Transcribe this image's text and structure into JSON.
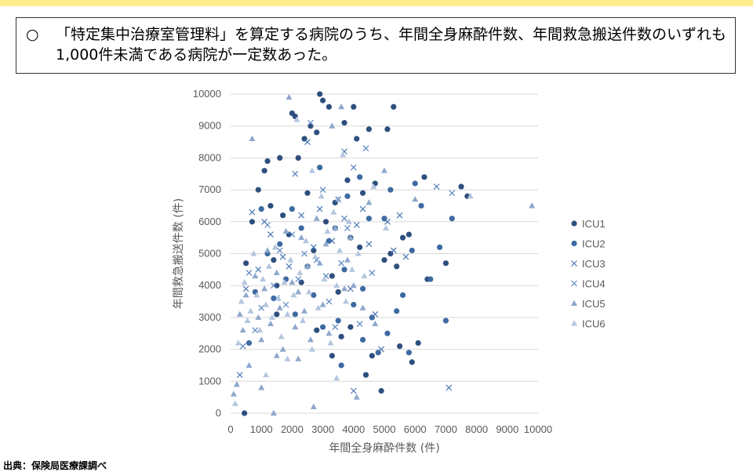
{
  "note": {
    "bullet": "○",
    "text": "「特定集中治療室管理料」を算定する病院のうち、年間全身麻酔件数、年間救急搬送件数のいずれも1,000件未満である病院が一定数あった。"
  },
  "source": "出典：保険局医療課調べ",
  "colors": {
    "ICU1": "#2e4f7e",
    "ICU2": "#3d6aa0",
    "ICU3": "#4a76b4",
    "ICU4": "#5b86c2",
    "ICU5": "#8ea7cc",
    "ICU6": "#b4c6e0",
    "grid": "#d9d9d9",
    "axis_text": "#595959"
  },
  "chart_data": {
    "type": "scatter",
    "xlabel": "年間全身麻酔件数 (件)",
    "ylabel": "年間救急搬送件数 (件)",
    "xlim": [
      0,
      10000
    ],
    "ylim": [
      0,
      10000
    ],
    "xticks": [
      "0",
      "1000",
      "2000",
      "3000",
      "4000",
      "5000",
      "6000",
      "7000",
      "8000",
      "9000",
      "10000"
    ],
    "yticks": [
      "0",
      "1000",
      "2000",
      "3000",
      "4000",
      "5000",
      "6000",
      "7000",
      "8000",
      "9000",
      "10000"
    ],
    "grid": "horizontal",
    "legend": "right",
    "series": [
      {
        "name": "ICU1",
        "marker": "circle",
        "points": [
          [
            450,
            0
          ],
          [
            500,
            4700
          ],
          [
            700,
            6000
          ],
          [
            900,
            7000
          ],
          [
            1100,
            7600
          ],
          [
            1200,
            7900
          ],
          [
            1300,
            6500
          ],
          [
            1400,
            4800
          ],
          [
            1500,
            3100
          ],
          [
            1600,
            8000
          ],
          [
            1700,
            6200
          ],
          [
            1900,
            5600
          ],
          [
            2000,
            9400
          ],
          [
            2100,
            9300
          ],
          [
            2200,
            8000
          ],
          [
            2300,
            4100
          ],
          [
            2400,
            8600
          ],
          [
            2500,
            6900
          ],
          [
            2600,
            9000
          ],
          [
            2700,
            5100
          ],
          [
            2800,
            8800
          ],
          [
            2900,
            10000
          ],
          [
            3000,
            9800
          ],
          [
            3100,
            6000
          ],
          [
            3200,
            9600
          ],
          [
            3300,
            4300
          ],
          [
            3400,
            6600
          ],
          [
            3500,
            3800
          ],
          [
            3600,
            2400
          ],
          [
            3700,
            9100
          ],
          [
            3800,
            7300
          ],
          [
            3900,
            5500
          ],
          [
            4000,
            9600
          ],
          [
            4100,
            8600
          ],
          [
            4200,
            5200
          ],
          [
            4300,
            6900
          ],
          [
            4400,
            1200
          ],
          [
            4500,
            8900
          ],
          [
            4600,
            1800
          ],
          [
            4700,
            7200
          ],
          [
            4900,
            700
          ],
          [
            5000,
            4800
          ],
          [
            5100,
            8900
          ],
          [
            5200,
            5000
          ],
          [
            5300,
            9600
          ],
          [
            5400,
            4600
          ],
          [
            5500,
            2100
          ],
          [
            5600,
            5500
          ],
          [
            5800,
            5600
          ],
          [
            5900,
            1600
          ],
          [
            6100,
            2200
          ],
          [
            6300,
            7400
          ],
          [
            6400,
            4200
          ],
          [
            7000,
            4700
          ],
          [
            7500,
            7100
          ],
          [
            7700,
            6800
          ],
          [
            3300,
            1800
          ],
          [
            2800,
            2600
          ],
          [
            1500,
            4000
          ],
          [
            3900,
            2700
          ]
        ]
      },
      {
        "name": "ICU2",
        "marker": "circle",
        "points": [
          [
            600,
            2200
          ],
          [
            800,
            3800
          ],
          [
            1000,
            6400
          ],
          [
            1200,
            5000
          ],
          [
            1400,
            3600
          ],
          [
            1600,
            5300
          ],
          [
            1800,
            4200
          ],
          [
            2000,
            6400
          ],
          [
            2100,
            3100
          ],
          [
            2300,
            5800
          ],
          [
            2500,
            4600
          ],
          [
            2700,
            3700
          ],
          [
            2900,
            7700
          ],
          [
            3000,
            2700
          ],
          [
            3200,
            5400
          ],
          [
            3400,
            5800
          ],
          [
            3500,
            2900
          ],
          [
            3700,
            4500
          ],
          [
            3800,
            6800
          ],
          [
            4000,
            3400
          ],
          [
            4200,
            7400
          ],
          [
            4300,
            2300
          ],
          [
            4500,
            6100
          ],
          [
            4600,
            3000
          ],
          [
            4800,
            1900
          ],
          [
            5000,
            6100
          ],
          [
            5100,
            2500
          ],
          [
            5200,
            7000
          ],
          [
            5400,
            3200
          ],
          [
            5600,
            3700
          ],
          [
            5800,
            1900
          ],
          [
            5900,
            5100
          ],
          [
            6000,
            7200
          ],
          [
            6200,
            6500
          ],
          [
            6500,
            4200
          ],
          [
            6800,
            5200
          ],
          [
            7000,
            2900
          ],
          [
            7200,
            6100
          ],
          [
            4300,
            3900
          ],
          [
            3600,
            1500
          ]
        ]
      },
      {
        "name": "ICU3",
        "marker": "x",
        "points": [
          [
            300,
            1200
          ],
          [
            500,
            3900
          ],
          [
            700,
            6300
          ],
          [
            900,
            4500
          ],
          [
            1100,
            6000
          ],
          [
            1300,
            5600
          ],
          [
            1500,
            3600
          ],
          [
            1700,
            4900
          ],
          [
            1900,
            4600
          ],
          [
            2100,
            7500
          ],
          [
            2300,
            6200
          ],
          [
            2500,
            8500
          ],
          [
            2700,
            5200
          ],
          [
            2900,
            6400
          ],
          [
            3100,
            4300
          ],
          [
            3300,
            5400
          ],
          [
            3500,
            6700
          ],
          [
            3700,
            8200
          ],
          [
            3900,
            3900
          ],
          [
            4100,
            5900
          ],
          [
            4300,
            6400
          ],
          [
            4500,
            5300
          ],
          [
            4700,
            3100
          ],
          [
            4900,
            2000
          ],
          [
            5100,
            6000
          ],
          [
            5300,
            5100
          ],
          [
            5500,
            6200
          ],
          [
            5700,
            4900
          ],
          [
            7100,
            800
          ],
          [
            4000,
            700
          ]
        ]
      },
      {
        "name": "ICU4",
        "marker": "x",
        "points": [
          [
            400,
            2100
          ],
          [
            600,
            4400
          ],
          [
            800,
            2600
          ],
          [
            1000,
            3300
          ],
          [
            1200,
            5900
          ],
          [
            1400,
            4000
          ],
          [
            1600,
            5100
          ],
          [
            1800,
            3400
          ],
          [
            2000,
            5600
          ],
          [
            2200,
            4200
          ],
          [
            2400,
            5000
          ],
          [
            2600,
            9100
          ],
          [
            2800,
            4800
          ],
          [
            3000,
            7000
          ],
          [
            3200,
            3500
          ],
          [
            3400,
            2700
          ],
          [
            3600,
            4700
          ],
          [
            3800,
            5800
          ],
          [
            4000,
            7700
          ],
          [
            4200,
            2800
          ],
          [
            4400,
            8300
          ],
          [
            4600,
            4400
          ],
          [
            6700,
            7100
          ],
          [
            7200,
            6900
          ],
          [
            3700,
            6100
          ]
        ]
      },
      {
        "name": "ICU5",
        "marker": "triangle",
        "points": [
          [
            100,
            600
          ],
          [
            200,
            900
          ],
          [
            300,
            3100
          ],
          [
            400,
            2600
          ],
          [
            500,
            3700
          ],
          [
            600,
            1500
          ],
          [
            700,
            8600
          ],
          [
            800,
            4300
          ],
          [
            900,
            3000
          ],
          [
            1000,
            2300
          ],
          [
            1100,
            3900
          ],
          [
            1200,
            5100
          ],
          [
            1300,
            2800
          ],
          [
            1400,
            0
          ],
          [
            1500,
            4400
          ],
          [
            1600,
            3300
          ],
          [
            1700,
            2000
          ],
          [
            1800,
            5700
          ],
          [
            1900,
            9900
          ],
          [
            2000,
            4100
          ],
          [
            2100,
            2700
          ],
          [
            2200,
            3800
          ],
          [
            2300,
            5500
          ],
          [
            2400,
            3200
          ],
          [
            2500,
            4600
          ],
          [
            2600,
            2300
          ],
          [
            2700,
            200
          ],
          [
            2800,
            6100
          ],
          [
            2900,
            4700
          ],
          [
            3000,
            3400
          ],
          [
            3100,
            5300
          ],
          [
            3200,
            2500
          ],
          [
            3300,
            9000
          ],
          [
            3400,
            5800
          ],
          [
            3500,
            6700
          ],
          [
            3600,
            9600
          ],
          [
            3700,
            3900
          ],
          [
            3800,
            4800
          ],
          [
            3900,
            5500
          ],
          [
            4000,
            4000
          ],
          [
            4100,
            500
          ],
          [
            4300,
            3300
          ],
          [
            4500,
            6600
          ],
          [
            4700,
            2800
          ],
          [
            5000,
            7600
          ],
          [
            6000,
            6700
          ],
          [
            9800,
            6500
          ],
          [
            2200,
            1700
          ],
          [
            1000,
            800
          ],
          [
            1500,
            1800
          ]
        ]
      },
      {
        "name": "ICU6",
        "marker": "triangle",
        "points": [
          [
            150,
            300
          ],
          [
            250,
            2200
          ],
          [
            350,
            3500
          ],
          [
            450,
            4100
          ],
          [
            550,
            2900
          ],
          [
            650,
            3200
          ],
          [
            750,
            5000
          ],
          [
            850,
            3700
          ],
          [
            950,
            2600
          ],
          [
            1050,
            4200
          ],
          [
            1150,
            3400
          ],
          [
            1250,
            4600
          ],
          [
            1350,
            3000
          ],
          [
            1450,
            5200
          ],
          [
            1550,
            3600
          ],
          [
            1650,
            2400
          ],
          [
            1750,
            4100
          ],
          [
            1850,
            3100
          ],
          [
            1950,
            4800
          ],
          [
            2050,
            3700
          ],
          [
            2150,
            9200
          ],
          [
            2250,
            4400
          ],
          [
            2350,
            2900
          ],
          [
            2450,
            5400
          ],
          [
            2550,
            3800
          ],
          [
            2650,
            7600
          ],
          [
            2750,
            4900
          ],
          [
            2850,
            3300
          ],
          [
            2950,
            6800
          ],
          [
            3050,
            4200
          ],
          [
            3150,
            5700
          ],
          [
            3250,
            2200
          ],
          [
            3350,
            6300
          ],
          [
            3450,
            4000
          ],
          [
            3550,
            5100
          ],
          [
            3650,
            8100
          ],
          [
            3750,
            3500
          ],
          [
            3850,
            6000
          ],
          [
            3950,
            4500
          ],
          [
            4150,
            5000
          ],
          [
            4350,
            4300
          ],
          [
            4650,
            7100
          ],
          [
            5050,
            5800
          ],
          [
            7800,
            6800
          ],
          [
            1850,
            1700
          ],
          [
            2650,
            2000
          ],
          [
            1150,
            1200
          ],
          [
            3450,
            1100
          ]
        ]
      }
    ]
  }
}
